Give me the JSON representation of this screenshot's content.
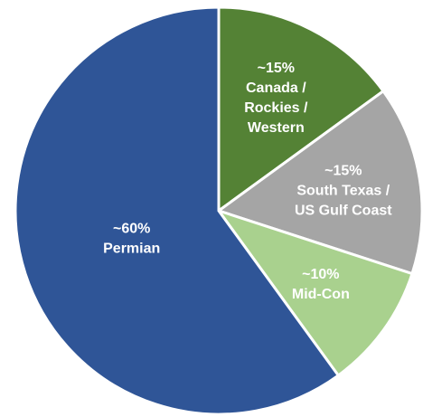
{
  "chart_data": {
    "type": "pie",
    "categories": [
      [
        "Canada /",
        "Rockies /",
        "Western"
      ],
      [
        "South Texas /",
        "US Gulf Coast"
      ],
      [
        "Mid-Con"
      ],
      [
        "Permian"
      ]
    ],
    "values": [
      15,
      15,
      10,
      60
    ],
    "value_labels": [
      "~15%",
      "~15%",
      "~10%",
      "~60%"
    ],
    "colors": [
      "#548235",
      "#a5a5a5",
      "#a9d18e",
      "#2f5597"
    ]
  }
}
